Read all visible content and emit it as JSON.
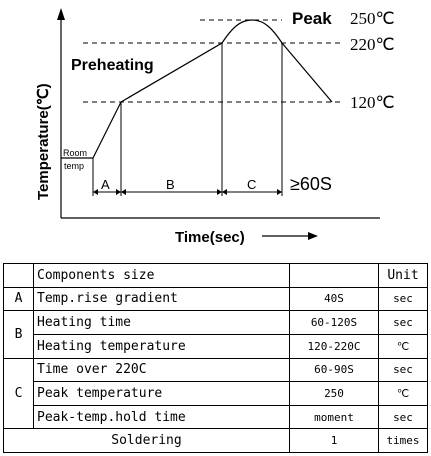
{
  "diagram": {
    "y_axis_label": "Temperature(℃)",
    "x_axis_label": "Time(sec)",
    "peak_label": "Peak",
    "preheating_label": "Preheating",
    "temp_250": "250℃",
    "temp_220": "220℃",
    "temp_120": "120℃",
    "room_line1": "Room",
    "room_line2": "temp",
    "zone_a": "A",
    "zone_b": "B",
    "zone_c": "C",
    "hold_label": "≥60S"
  },
  "table": {
    "header": {
      "name": "Components size",
      "unit": "Unit"
    },
    "rows": [
      {
        "group": "A",
        "name": "Temp.rise gradient",
        "value": "40S",
        "unit": "sec"
      },
      {
        "group": "B",
        "name": "Heating time",
        "value": "60-120S",
        "unit": "sec"
      },
      {
        "group": "B",
        "name": "Heating temperature",
        "value": "120-220C",
        "unit": "℃"
      },
      {
        "group": "C",
        "name": "Time over 220C",
        "value": "60-90S",
        "unit": "sec"
      },
      {
        "group": "C",
        "name": "Peak temperature",
        "value": "250",
        "unit": "℃"
      },
      {
        "group": "C",
        "name": "Peak-temp.hold time",
        "value": "moment",
        "unit": "sec"
      }
    ],
    "soldering": {
      "name": "Soldering",
      "value": "1",
      "unit": "times"
    }
  }
}
